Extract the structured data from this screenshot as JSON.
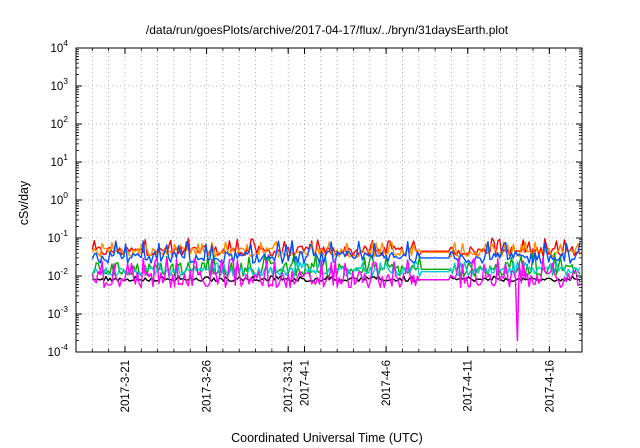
{
  "chart_data": {
    "type": "line",
    "title": "/data/run/goesPlots/archive/2017-04-17/flux/../bryn/31daysEarth.plot",
    "xlabel": "Coordinated Universal Time (UTC)",
    "ylabel": "cSv/day",
    "yscale": "log",
    "ylim": [
      0.0001,
      10000
    ],
    "y_ticks": [
      {
        "value": 0.0001,
        "base": "10",
        "exp": "-4"
      },
      {
        "value": 0.001,
        "base": "10",
        "exp": "-3"
      },
      {
        "value": 0.01,
        "base": "10",
        "exp": "-2"
      },
      {
        "value": 0.1,
        "base": "10",
        "exp": "-1"
      },
      {
        "value": 1,
        "base": "10",
        "exp": "0"
      },
      {
        "value": 10,
        "base": "10",
        "exp": "1"
      },
      {
        "value": 100,
        "base": "10",
        "exp": "2"
      },
      {
        "value": 1000,
        "base": "10",
        "exp": "3"
      },
      {
        "value": 10000,
        "base": "10",
        "exp": "4"
      }
    ],
    "xlim": [
      "2017-03-18",
      "2017-04-18"
    ],
    "x_ticks": [
      {
        "value": "2017-03-21",
        "label": "2017-3-21"
      },
      {
        "value": "2017-03-26",
        "label": "2017-3-26"
      },
      {
        "value": "2017-03-31",
        "label": "2017-3-31"
      },
      {
        "value": "2017-04-01",
        "label": "2017-4-1"
      },
      {
        "value": "2017-04-06",
        "label": "2017-4-6"
      },
      {
        "value": "2017-04-11",
        "label": "2017-4-11"
      },
      {
        "value": "2017-04-16",
        "label": "2017-4-16"
      }
    ],
    "grid": true,
    "series": [
      {
        "color": "#ff0000",
        "baseline": 0.045,
        "range": [
          0.035,
          0.1
        ],
        "x_start": "2017-03-19"
      },
      {
        "color": "#ff8c00",
        "baseline": 0.042,
        "range": [
          0.03,
          0.08
        ],
        "x_start": "2017-03-19"
      },
      {
        "color": "#000000",
        "baseline": 0.008,
        "range": [
          0.007,
          0.01
        ],
        "x_start": "2017-03-19"
      },
      {
        "color": "#00aa00",
        "baseline": 0.015,
        "range": [
          0.01,
          0.04
        ],
        "x_start": "2017-03-19"
      },
      {
        "color": "#00cccc",
        "baseline": 0.013,
        "range": [
          0.01,
          0.025
        ],
        "x_start": "2017-03-19"
      },
      {
        "color": "#0050ff",
        "baseline": 0.03,
        "range": [
          0.022,
          0.085
        ],
        "x_start": "2017-03-19"
      },
      {
        "color": "#ff00ff",
        "baseline": 0.008,
        "range": [
          0.005,
          0.03
        ],
        "x_start": "2017-03-19",
        "min_event": {
          "x": "2017-04-14",
          "y": 0.0002
        }
      }
    ]
  }
}
